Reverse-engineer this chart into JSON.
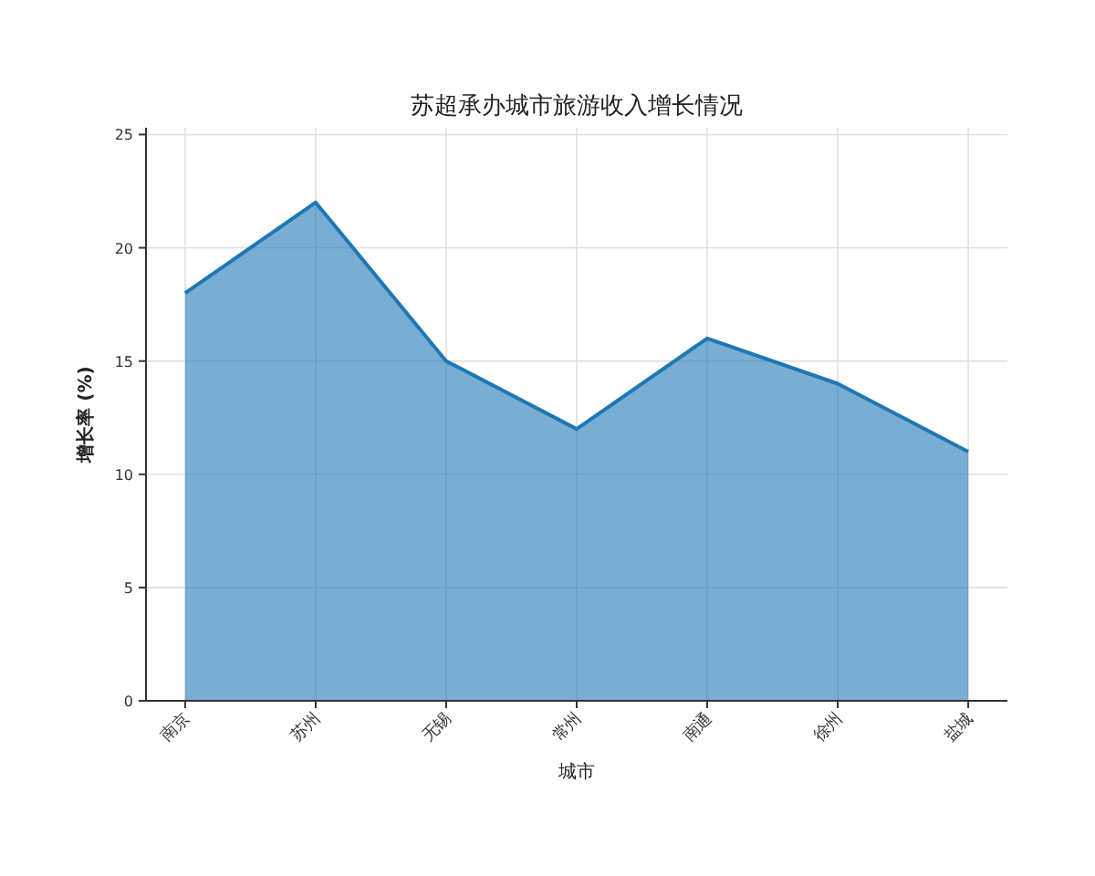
{
  "chart_data": {
    "type": "area",
    "title": "苏超承办城市旅游收入增长情况",
    "xlabel": "城市",
    "ylabel": "增长率 (%)",
    "categories": [
      "南京",
      "苏州",
      "无锡",
      "常州",
      "南通",
      "徐州",
      "盐城"
    ],
    "series": [
      {
        "color": "#1f77b4",
        "values": [
          18,
          22,
          15,
          12,
          16,
          14,
          11
        ]
      }
    ],
    "ylim": [
      0,
      25.3
    ],
    "yticks": [
      0,
      5,
      10,
      15,
      20,
      25
    ],
    "grid": true
  }
}
